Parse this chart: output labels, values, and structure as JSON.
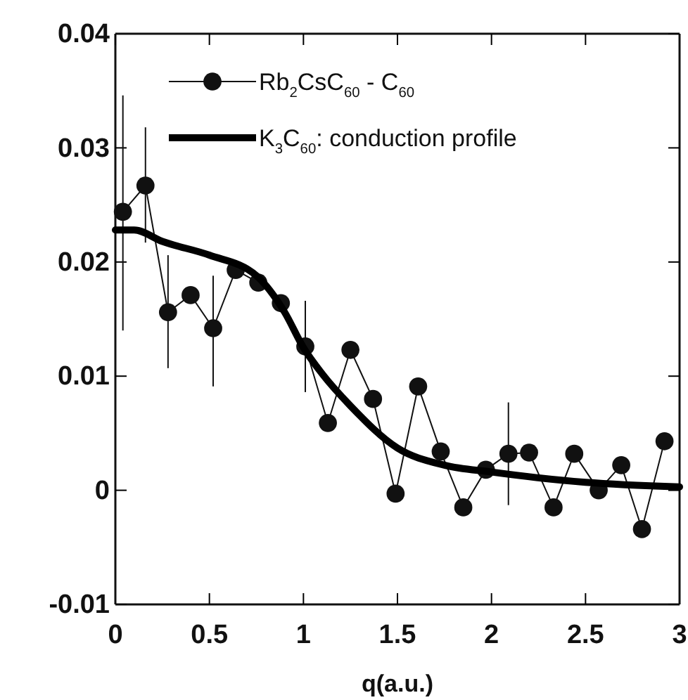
{
  "chart_data": {
    "type": "line",
    "xlabel": "q(a.u.)",
    "xlim": [
      0,
      3
    ],
    "ylim": [
      -0.01,
      0.04
    ],
    "xticks": [
      0,
      0.5,
      1,
      1.5,
      2,
      2.5,
      3
    ],
    "yticks": [
      -0.01,
      0,
      0.01,
      0.02,
      0.03,
      0.04
    ],
    "legend": "top left",
    "grid": false,
    "series": [
      {
        "name": "Rb$_{2}$CsC$_{60}$ - C$_{60}$",
        "color": "#111111",
        "marker": "circle",
        "x": [
          0.04,
          0.16,
          0.28,
          0.4,
          0.52,
          0.64,
          0.76,
          0.88,
          1.01,
          1.13,
          1.25,
          1.37,
          1.49,
          1.61,
          1.73,
          1.85,
          1.97,
          2.09,
          2.2,
          2.33,
          2.44,
          2.57,
          2.69,
          2.8,
          2.92
        ],
        "values": [
          0.0244,
          0.0267,
          0.0156,
          0.0171,
          0.0142,
          0.0193,
          0.0182,
          0.0164,
          0.0126,
          0.0059,
          0.0123,
          0.008,
          -0.0003,
          0.0091,
          0.0034,
          -0.0015,
          0.0018,
          0.0032,
          0.0033,
          -0.0015,
          0.0032,
          0,
          0.0022,
          -0.0034,
          0.0043
        ],
        "errors": [
          [
            0.014,
            0.0346
          ],
          [
            0.0217,
            0.0318
          ],
          [
            0.0107,
            0.0206
          ],
          null,
          [
            0.0091,
            0.0188
          ],
          null,
          null,
          null,
          [
            0.0086,
            0.0166
          ],
          null,
          null,
          null,
          null,
          null,
          null,
          null,
          null,
          [
            -0.0013,
            0.0077
          ],
          null,
          null,
          null,
          null,
          null,
          null,
          null
        ]
      },
      {
        "name": "K$_{3}$C$_{60}$: conduction profile",
        "color": "#000000",
        "marker": "none",
        "x": [
          0,
          0.1,
          0.25,
          0.5,
          0.75,
          0.9,
          1,
          1.1,
          1.25,
          1.5,
          1.75,
          2,
          2.5,
          3
        ],
        "values": [
          0.0228,
          0.0228,
          0.0218,
          0.0206,
          0.0188,
          0.0156,
          0.0125,
          0.0102,
          0.0074,
          0.0037,
          0.0022,
          0.0016,
          0.0007,
          0.0003
        ]
      }
    ]
  }
}
